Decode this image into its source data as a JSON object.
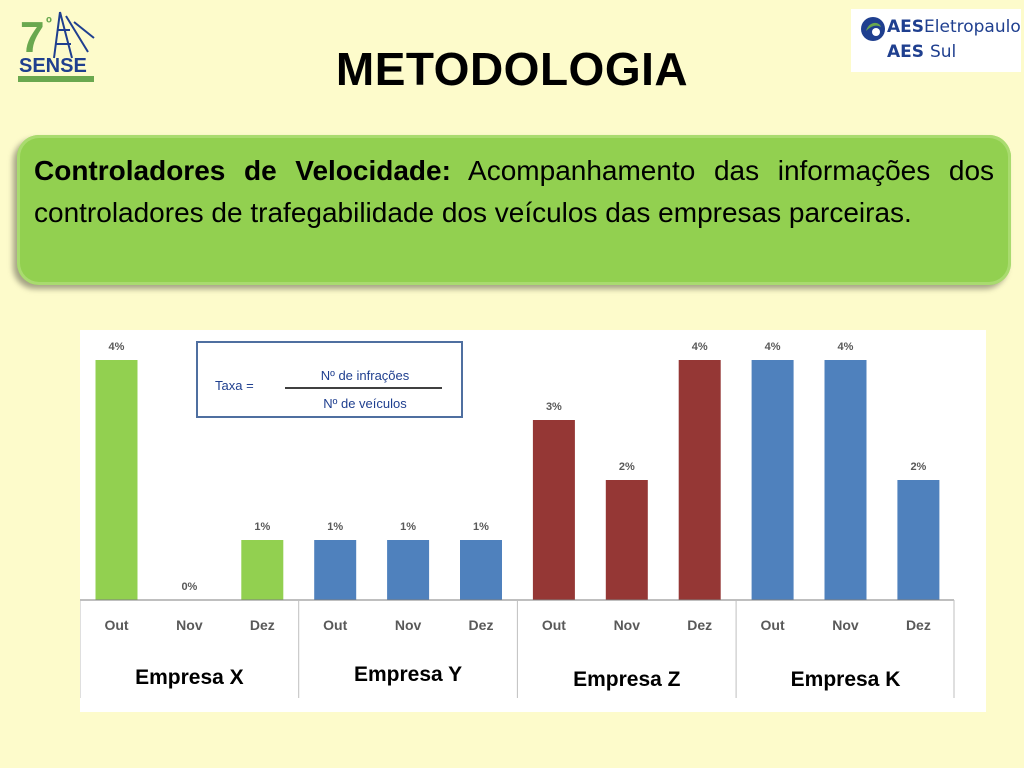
{
  "header": {
    "title": "METODOLOGIA",
    "logo_left": {
      "number": "7",
      "suffix": "º",
      "name": "SENSE"
    },
    "logo_right": {
      "line1_bold": "AES",
      "line1_rest": "Eletropaulo",
      "line2_bold": "AES",
      "line2_rest": "Sul"
    }
  },
  "callout": {
    "bold": "Controladores de Velocidade:",
    "text": "Acompanhamento das informações dos controladores de trafegabilidade dos veículos das empresas parceiras."
  },
  "formula": {
    "prefix": "Taxa =",
    "numerator": "Nº de infrações",
    "denominator": "Nº de veículos"
  },
  "colors": {
    "green": "#92d050",
    "blue": "#4f81bd",
    "red": "#953735",
    "callout": "#92d050",
    "background": "#fdfbcb"
  },
  "chart_data": {
    "type": "bar",
    "ylim": [
      0,
      4.3
    ],
    "groups": [
      {
        "name": "Empresa X",
        "color": "#92d050",
        "categories": [
          "Out",
          "Nov",
          "Dez"
        ],
        "values": [
          4,
          0,
          1
        ],
        "labels": [
          "4%",
          "0%",
          "1%"
        ]
      },
      {
        "name": "Empresa Y",
        "color": "#4f81bd",
        "categories": [
          "Out",
          "Nov",
          "Dez"
        ],
        "values": [
          1,
          1,
          1
        ],
        "labels": [
          "1%",
          "1%",
          "1%"
        ]
      },
      {
        "name": "Empresa Z",
        "color": "#953735",
        "categories": [
          "Out",
          "Nov",
          "Dez"
        ],
        "values": [
          3,
          2,
          4
        ],
        "labels": [
          "3%",
          "2%",
          "4%"
        ]
      },
      {
        "name": "Empresa K",
        "color": "#4f81bd",
        "categories": [
          "Out",
          "Nov",
          "Dez"
        ],
        "values": [
          4,
          4,
          2
        ],
        "labels": [
          "4%",
          "4%",
          "2%"
        ]
      }
    ]
  }
}
